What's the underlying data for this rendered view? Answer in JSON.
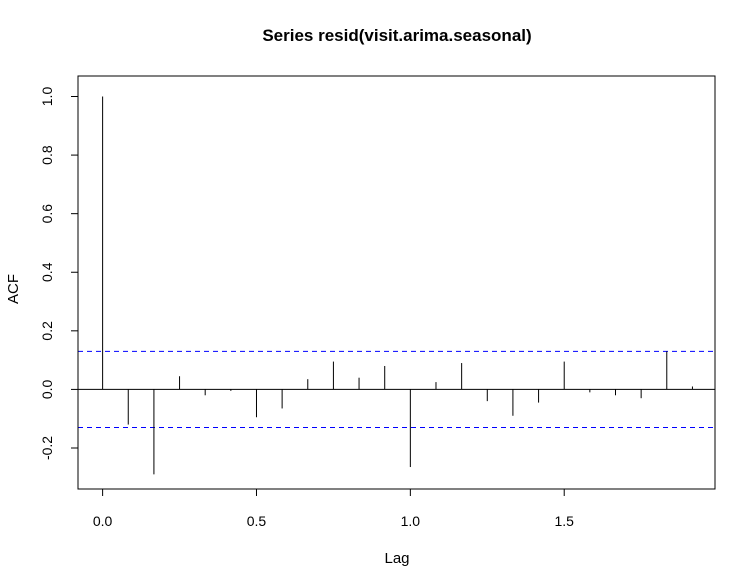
{
  "chart_data": {
    "type": "acf",
    "title": "Series  resid(visit.arima.seasonal)",
    "xlabel": "Lag",
    "ylabel": "ACF",
    "xlim": [
      -0.08,
      1.99
    ],
    "ylim": [
      -0.34,
      1.07
    ],
    "xticks": [
      0.0,
      0.5,
      1.0,
      1.5
    ],
    "xtick_labels": [
      "0.0",
      "0.5",
      "1.0",
      "1.5"
    ],
    "yticks": [
      -0.2,
      0.0,
      0.2,
      0.4,
      0.6,
      0.8,
      1.0
    ],
    "ytick_labels": [
      "-0.2",
      "0.0",
      "0.2",
      "0.4",
      "0.6",
      "0.8",
      "1.0"
    ],
    "confidence_bound": 0.13,
    "bound_color": "#0000ff",
    "bar_color": "#000000",
    "lags": [
      0.0,
      0.0833,
      0.1667,
      0.25,
      0.3333,
      0.4167,
      0.5,
      0.5833,
      0.6667,
      0.75,
      0.8333,
      0.9167,
      1.0,
      1.0833,
      1.1667,
      1.25,
      1.3333,
      1.4167,
      1.5,
      1.5833,
      1.6667,
      1.75,
      1.8333,
      1.9167
    ],
    "values": [
      1.0,
      -0.12,
      -0.29,
      0.045,
      -0.02,
      -0.005,
      -0.095,
      -0.065,
      0.035,
      0.095,
      0.04,
      0.08,
      -0.265,
      0.025,
      0.09,
      -0.04,
      -0.09,
      -0.045,
      0.095,
      -0.01,
      -0.02,
      -0.03,
      0.13,
      0.01
    ]
  }
}
